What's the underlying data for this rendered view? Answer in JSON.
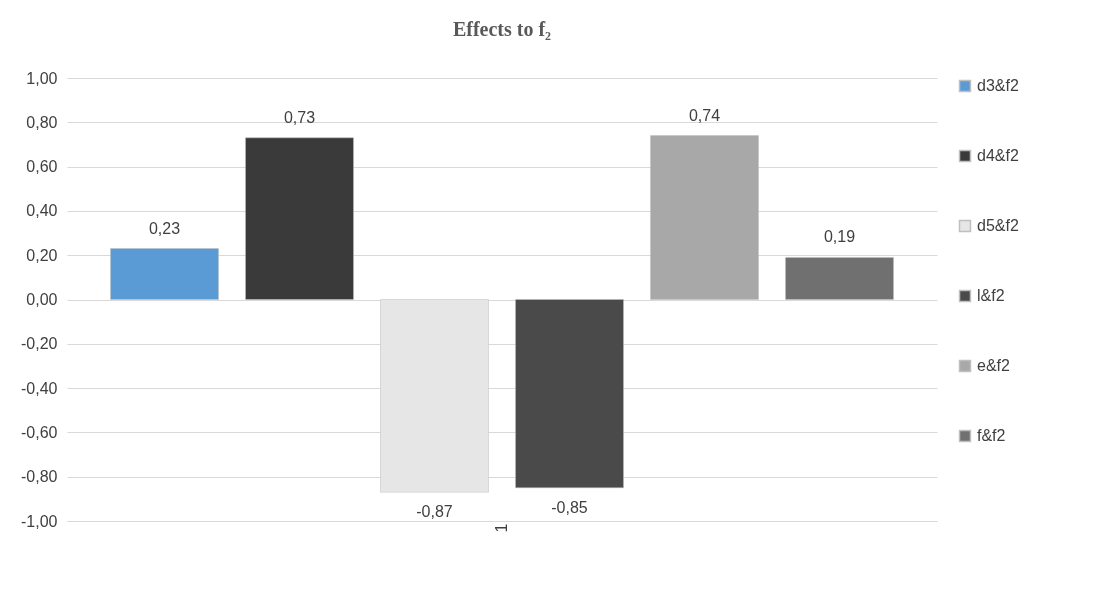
{
  "chart_data": {
    "type": "bar",
    "title": "Effects to f₂",
    "categories": [
      "1"
    ],
    "series": [
      {
        "name": "d3&f2",
        "color": "#5b9bd5",
        "values": [
          0.23
        ],
        "value_labels": [
          "0,23"
        ]
      },
      {
        "name": "d4&f2",
        "color": "#3a3a3a",
        "values": [
          0.73
        ],
        "value_labels": [
          "0,73"
        ]
      },
      {
        "name": "d5&f2",
        "color": "#e6e6e6",
        "values": [
          -0.87
        ],
        "value_labels": [
          "-0,87"
        ]
      },
      {
        "name": "l&f2",
        "color": "#4a4a4a",
        "values": [
          -0.85
        ],
        "value_labels": [
          "-0,85"
        ]
      },
      {
        "name": "e&f2",
        "color": "#a8a8a8",
        "values": [
          0.74
        ],
        "value_labels": [
          "0,74"
        ]
      },
      {
        "name": "f&f2",
        "color": "#707070",
        "values": [
          0.19
        ],
        "value_labels": [
          "0,19"
        ]
      }
    ],
    "ylim": [
      -1,
      1
    ],
    "yticks": [
      {
        "value": -1,
        "label": "-1,00"
      },
      {
        "value": -0.8,
        "label": "-0,80"
      },
      {
        "value": -0.6,
        "label": "-0,60"
      },
      {
        "value": -0.4,
        "label": "-0,40"
      },
      {
        "value": -0.2,
        "label": "-0,20"
      },
      {
        "value": 0,
        "label": "0,00"
      },
      {
        "value": 0.2,
        "label": "0,20"
      },
      {
        "value": 0.4,
        "label": "0,40"
      },
      {
        "value": 0.6,
        "label": "0,60"
      },
      {
        "value": 0.8,
        "label": "0,80"
      },
      {
        "value": 1,
        "label": "1,00"
      }
    ],
    "grid": "y",
    "legend": "right"
  }
}
